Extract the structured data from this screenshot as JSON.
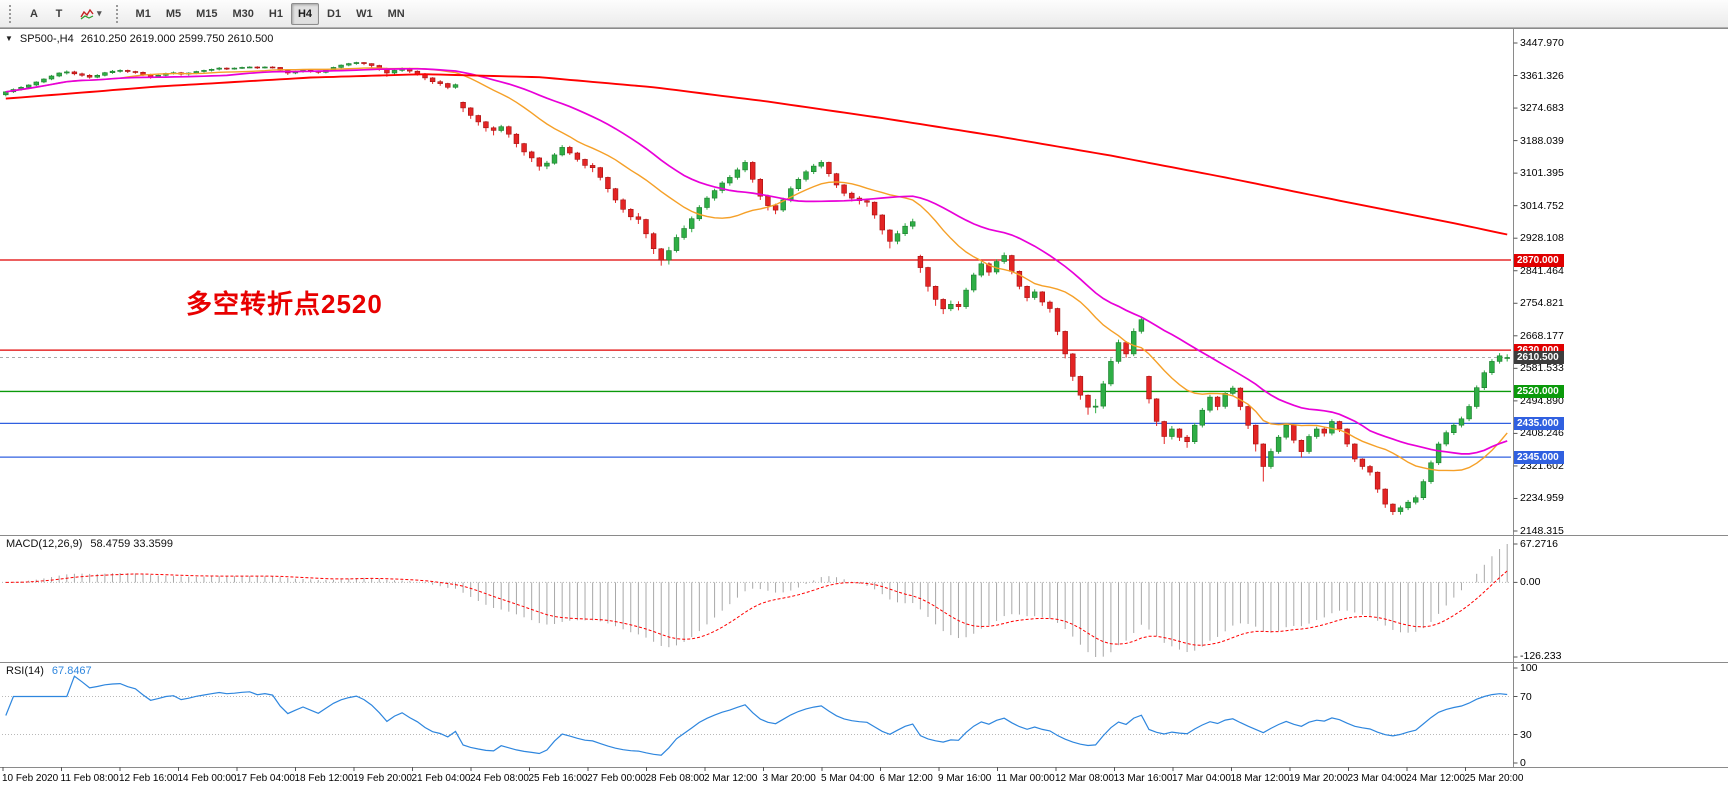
{
  "toolbar": {
    "tool_buttons": [
      {
        "id": "cursor-a",
        "label": "A"
      },
      {
        "id": "text-t",
        "label": "T"
      }
    ],
    "dropdown_caret": "▾",
    "timeframes": [
      {
        "label": "M1",
        "active": false
      },
      {
        "label": "M5",
        "active": false
      },
      {
        "label": "M15",
        "active": false
      },
      {
        "label": "M30",
        "active": false
      },
      {
        "label": "H1",
        "active": false
      },
      {
        "label": "H4",
        "active": true
      },
      {
        "label": "D1",
        "active": false
      },
      {
        "label": "W1",
        "active": false
      },
      {
        "label": "MN",
        "active": false
      }
    ]
  },
  "chart": {
    "menu_arrow": "▼",
    "symbol_label": "SP500-,H4",
    "ohlc_text": "2610.250 2619.000 2599.750 2610.500",
    "annotation": "多空转折点2520",
    "price_axis_labels": [
      "3447.970",
      "3361.326",
      "3274.683",
      "3188.039",
      "3101.395",
      "3014.752",
      "2928.108",
      "2841.464",
      "2754.821",
      "2668.177",
      "2581.533",
      "2494.890",
      "2408.246",
      "2321.602",
      "2234.959",
      "2148.315"
    ],
    "levels": [
      {
        "label": "2870.000",
        "price": 2870.0,
        "color": "#e00000"
      },
      {
        "label": "2630.000",
        "price": 2630.0,
        "color": "#e00000"
      },
      {
        "label": "2520.000",
        "price": 2520.0,
        "color": "#0a9a0a"
      },
      {
        "label": "2435.000",
        "price": 2435.0,
        "color": "#3060e0"
      },
      {
        "label": "2345.000",
        "price": 2345.0,
        "color": "#3060e0"
      }
    ],
    "current_price": {
      "label": "2610.500",
      "price": 2610.5,
      "badge_color": "#3d3d3d"
    },
    "time_axis_labels": [
      "10 Feb 2020",
      "11 Feb 08:00",
      "12 Feb 16:00",
      "14 Feb 00:00",
      "17 Feb 04:00",
      "18 Feb 12:00",
      "19 Feb 20:00",
      "21 Feb 04:00",
      "24 Feb 08:00",
      "25 Feb 16:00",
      "27 Feb 00:00",
      "28 Feb 08:00",
      "2 Mar 12:00",
      "3 Mar 20:00",
      "5 Mar 04:00",
      "6 Mar 12:00",
      "9 Mar 16:00",
      "11 Mar 00:00",
      "12 Mar 08:00",
      "13 Mar 16:00",
      "17 Mar 04:00",
      "18 Mar 12:00",
      "19 Mar 20:00",
      "23 Mar 04:00",
      "24 Mar 12:00",
      "25 Mar 20:00"
    ]
  },
  "macd_panel": {
    "label": "MACD(12,26,9)",
    "values": "58.4759 33.3599",
    "axis_labels": [
      "67.2716",
      "0.00",
      "-126.233"
    ]
  },
  "rsi_panel": {
    "label": "RSI(14)",
    "value": "67.8467",
    "axis_labels": [
      "100",
      "70",
      "30",
      "0"
    ],
    "levels": [
      70,
      30
    ]
  },
  "chart_data": {
    "type": "candlestick",
    "symbol": "SP500-",
    "timeframe": "H4",
    "price_range": [
      2148.315,
      3447.97
    ],
    "indicators": {
      "macd": [
        12,
        26,
        9
      ],
      "rsi": 14
    },
    "moving_averages": {
      "orange_sma_bars": 16,
      "magenta_sma_bars": 30,
      "red_ma_points": [
        [
          0,
          3300
        ],
        [
          20,
          3332
        ],
        [
          40,
          3356
        ],
        [
          55,
          3365
        ],
        [
          70,
          3357
        ],
        [
          85,
          3330
        ],
        [
          100,
          3292
        ],
        [
          115,
          3248
        ],
        [
          130,
          3200
        ],
        [
          145,
          3148
        ],
        [
          160,
          3090
        ],
        [
          175,
          3028
        ],
        [
          190,
          2968
        ],
        [
          197,
          2938
        ]
      ]
    },
    "colors": {
      "up": "#2eae45",
      "up_stroke": "#1d7a2e",
      "down": "#e32424",
      "down_stroke": "#a31212",
      "ma_red": "#ff0000",
      "ma_magenta": "#e800d8",
      "ma_orange": "#f5a028",
      "macd_hist": "#a8a8a8",
      "macd_signal": "#ff0000",
      "rsi": "#2e86de",
      "separator": "#8a8a8a",
      "tick": "#555555",
      "dotted_level": "#b8b8b8",
      "current_line": "#aaaaaa"
    },
    "bars": [
      [
        3310,
        3320,
        3306,
        3318
      ],
      [
        3318,
        3327,
        3315,
        3324
      ],
      [
        3324,
        3333,
        3321,
        3330
      ],
      [
        3330,
        3338,
        3326,
        3336
      ],
      [
        3336,
        3346,
        3333,
        3344
      ],
      [
        3344,
        3354,
        3341,
        3352
      ],
      [
        3352,
        3363,
        3349,
        3360
      ],
      [
        3360,
        3370,
        3357,
        3368
      ],
      [
        3368,
        3375,
        3364,
        3371
      ],
      [
        3371,
        3374,
        3362,
        3366
      ],
      [
        3366,
        3369,
        3358,
        3362
      ],
      [
        3362,
        3365,
        3353,
        3357
      ],
      [
        3357,
        3365,
        3354,
        3362
      ],
      [
        3362,
        3371,
        3359,
        3369
      ],
      [
        3369,
        3376,
        3366,
        3373
      ],
      [
        3373,
        3378,
        3369,
        3375
      ],
      [
        3375,
        3377,
        3368,
        3372
      ],
      [
        3372,
        3374,
        3366,
        3370
      ],
      [
        3370,
        3372,
        3360,
        3364
      ],
      [
        3364,
        3366,
        3353,
        3358
      ],
      [
        3358,
        3364,
        3355,
        3362
      ],
      [
        3362,
        3369,
        3359,
        3367
      ],
      [
        3367,
        3372,
        3364,
        3369
      ],
      [
        3369,
        3371,
        3361,
        3365
      ],
      [
        3365,
        3370,
        3361,
        3368
      ],
      [
        3368,
        3374,
        3365,
        3372
      ],
      [
        3372,
        3377,
        3369,
        3375
      ],
      [
        3375,
        3380,
        3372,
        3378
      ],
      [
        3378,
        3384,
        3375,
        3381
      ],
      [
        3381,
        3383,
        3376,
        3380
      ],
      [
        3380,
        3383,
        3377,
        3381
      ],
      [
        3381,
        3385,
        3379,
        3383
      ],
      [
        3383,
        3386,
        3381,
        3384
      ],
      [
        3384,
        3386,
        3379,
        3382
      ],
      [
        3382,
        3386,
        3380,
        3384
      ],
      [
        3384,
        3386,
        3380,
        3383
      ],
      [
        3383,
        3384,
        3371,
        3375
      ],
      [
        3375,
        3377,
        3363,
        3368
      ],
      [
        3368,
        3374,
        3365,
        3372
      ],
      [
        3372,
        3378,
        3369,
        3376
      ],
      [
        3376,
        3378,
        3369,
        3373
      ],
      [
        3373,
        3375,
        3366,
        3370
      ],
      [
        3370,
        3378,
        3367,
        3376
      ],
      [
        3376,
        3385,
        3373,
        3383
      ],
      [
        3383,
        3391,
        3380,
        3389
      ],
      [
        3389,
        3395,
        3386,
        3393
      ],
      [
        3393,
        3398,
        3390,
        3396
      ],
      [
        3396,
        3397,
        3389,
        3393
      ],
      [
        3393,
        3394,
        3383,
        3388
      ],
      [
        3388,
        3390,
        3374,
        3380
      ],
      [
        3380,
        3382,
        3358,
        3368
      ],
      [
        3368,
        3377,
        3364,
        3375
      ],
      [
        3375,
        3383,
        3371,
        3380
      ],
      [
        3380,
        3382,
        3368,
        3373
      ],
      [
        3373,
        3375,
        3361,
        3366
      ],
      [
        3366,
        3368,
        3349,
        3355
      ],
      [
        3355,
        3357,
        3339,
        3345
      ],
      [
        3345,
        3349,
        3334,
        3340
      ],
      [
        3340,
        3342,
        3325,
        3330
      ],
      [
        3330,
        3340,
        3326,
        3337
      ],
      [
        3290,
        3292,
        3264,
        3275
      ],
      [
        3275,
        3277,
        3246,
        3255
      ],
      [
        3255,
        3257,
        3228,
        3238
      ],
      [
        3238,
        3240,
        3212,
        3222
      ],
      [
        3222,
        3226,
        3202,
        3215
      ],
      [
        3215,
        3230,
        3210,
        3225
      ],
      [
        3225,
        3228,
        3196,
        3205
      ],
      [
        3205,
        3208,
        3170,
        3180
      ],
      [
        3180,
        3182,
        3148,
        3158
      ],
      [
        3158,
        3161,
        3131,
        3142
      ],
      [
        3142,
        3144,
        3108,
        3120
      ],
      [
        3120,
        3134,
        3112,
        3128
      ],
      [
        3128,
        3155,
        3124,
        3150
      ],
      [
        3150,
        3176,
        3146,
        3170
      ],
      [
        3170,
        3174,
        3150,
        3155
      ],
      [
        3155,
        3158,
        3132,
        3138
      ],
      [
        3138,
        3140,
        3114,
        3122
      ],
      [
        3122,
        3128,
        3104,
        3116
      ],
      [
        3116,
        3118,
        3082,
        3090
      ],
      [
        3090,
        3092,
        3050,
        3060
      ],
      [
        3060,
        3062,
        3022,
        3030
      ],
      [
        3030,
        3034,
        2996,
        3005
      ],
      [
        3005,
        3008,
        2976,
        2985
      ],
      [
        2985,
        2995,
        2966,
        2978
      ],
      [
        2978,
        2980,
        2928,
        2940
      ],
      [
        2940,
        2944,
        2886,
        2900
      ],
      [
        2900,
        2902,
        2855,
        2870
      ],
      [
        2870,
        2905,
        2858,
        2895
      ],
      [
        2895,
        2938,
        2890,
        2930
      ],
      [
        2930,
        2962,
        2924,
        2954
      ],
      [
        2954,
        2986,
        2944,
        2980
      ],
      [
        2980,
        3016,
        2974,
        3010
      ],
      [
        3010,
        3040,
        3004,
        3035
      ],
      [
        3035,
        3060,
        3028,
        3055
      ],
      [
        3055,
        3080,
        3048,
        3075
      ],
      [
        3075,
        3096,
        3068,
        3090
      ],
      [
        3090,
        3116,
        3084,
        3110
      ],
      [
        3110,
        3136,
        3104,
        3130
      ],
      [
        3130,
        3133,
        3076,
        3085
      ],
      [
        3085,
        3088,
        3030,
        3040
      ],
      [
        3040,
        3044,
        3002,
        3015
      ],
      [
        3015,
        3020,
        2992,
        3003
      ],
      [
        3003,
        3036,
        2998,
        3030
      ],
      [
        3030,
        3066,
        3024,
        3060
      ],
      [
        3060,
        3090,
        3054,
        3085
      ],
      [
        3085,
        3110,
        3079,
        3105
      ],
      [
        3105,
        3126,
        3099,
        3120
      ],
      [
        3120,
        3136,
        3114,
        3130
      ],
      [
        3130,
        3132,
        3092,
        3100
      ],
      [
        3100,
        3102,
        3062,
        3070
      ],
      [
        3070,
        3072,
        3040,
        3048
      ],
      [
        3048,
        3052,
        3026,
        3035
      ],
      [
        3035,
        3040,
        3018,
        3028
      ],
      [
        3028,
        3034,
        3012,
        3024
      ],
      [
        3024,
        3026,
        2980,
        2990
      ],
      [
        2990,
        2992,
        2938,
        2950
      ],
      [
        2950,
        2952,
        2901,
        2920
      ],
      [
        2920,
        2948,
        2912,
        2940
      ],
      [
        2940,
        2968,
        2934,
        2960
      ],
      [
        2960,
        2980,
        2952,
        2972
      ],
      [
        2880,
        2884,
        2836,
        2850
      ],
      [
        2850,
        2852,
        2786,
        2800
      ],
      [
        2800,
        2802,
        2748,
        2765
      ],
      [
        2765,
        2768,
        2726,
        2740
      ],
      [
        2740,
        2762,
        2734,
        2752
      ],
      [
        2752,
        2760,
        2736,
        2746
      ],
      [
        2746,
        2796,
        2740,
        2790
      ],
      [
        2790,
        2836,
        2784,
        2830
      ],
      [
        2830,
        2866,
        2824,
        2860
      ],
      [
        2860,
        2864,
        2828,
        2838
      ],
      [
        2838,
        2872,
        2832,
        2866
      ],
      [
        2866,
        2890,
        2860,
        2882
      ],
      [
        2882,
        2884,
        2832,
        2840
      ],
      [
        2840,
        2842,
        2792,
        2800
      ],
      [
        2800,
        2802,
        2760,
        2770
      ],
      [
        2770,
        2792,
        2764,
        2785
      ],
      [
        2785,
        2787,
        2748,
        2758
      ],
      [
        2758,
        2762,
        2730,
        2741
      ],
      [
        2741,
        2743,
        2670,
        2680
      ],
      [
        2680,
        2682,
        2608,
        2620
      ],
      [
        2620,
        2622,
        2548,
        2560
      ],
      [
        2560,
        2562,
        2498,
        2510
      ],
      [
        2510,
        2512,
        2458,
        2478
      ],
      [
        2478,
        2500,
        2462,
        2481
      ],
      [
        2481,
        2548,
        2474,
        2540
      ],
      [
        2540,
        2608,
        2534,
        2600
      ],
      [
        2600,
        2658,
        2594,
        2650
      ],
      [
        2650,
        2654,
        2610,
        2620
      ],
      [
        2620,
        2688,
        2614,
        2680
      ],
      [
        2680,
        2720,
        2674,
        2711
      ],
      [
        2560,
        2562,
        2488,
        2500
      ],
      [
        2500,
        2502,
        2428,
        2440
      ],
      [
        2440,
        2442,
        2380,
        2400
      ],
      [
        2400,
        2428,
        2392,
        2420
      ],
      [
        2420,
        2422,
        2388,
        2398
      ],
      [
        2398,
        2404,
        2370,
        2386
      ],
      [
        2386,
        2436,
        2380,
        2430
      ],
      [
        2430,
        2476,
        2424,
        2470
      ],
      [
        2470,
        2511,
        2464,
        2505
      ],
      [
        2505,
        2508,
        2470,
        2480
      ],
      [
        2480,
        2521,
        2474,
        2515
      ],
      [
        2515,
        2535,
        2509,
        2529
      ],
      [
        2529,
        2531,
        2470,
        2480
      ],
      [
        2480,
        2482,
        2420,
        2430
      ],
      [
        2430,
        2432,
        2360,
        2380
      ],
      [
        2380,
        2382,
        2280,
        2320
      ],
      [
        2320,
        2368,
        2314,
        2360
      ],
      [
        2360,
        2404,
        2354,
        2398
      ],
      [
        2398,
        2436,
        2392,
        2430
      ],
      [
        2430,
        2432,
        2382,
        2390
      ],
      [
        2390,
        2392,
        2344,
        2360
      ],
      [
        2360,
        2406,
        2354,
        2400
      ],
      [
        2400,
        2426,
        2394,
        2420
      ],
      [
        2420,
        2424,
        2400,
        2409
      ],
      [
        2409,
        2446,
        2403,
        2440
      ],
      [
        2440,
        2442,
        2412,
        2420
      ],
      [
        2420,
        2422,
        2372,
        2380
      ],
      [
        2380,
        2382,
        2332,
        2340
      ],
      [
        2340,
        2342,
        2312,
        2320
      ],
      [
        2320,
        2324,
        2296,
        2305
      ],
      [
        2305,
        2307,
        2250,
        2260
      ],
      [
        2260,
        2262,
        2210,
        2220
      ],
      [
        2220,
        2222,
        2191,
        2200
      ],
      [
        2200,
        2216,
        2192,
        2210
      ],
      [
        2210,
        2231,
        2204,
        2225
      ],
      [
        2225,
        2243,
        2219,
        2237
      ],
      [
        2237,
        2286,
        2231,
        2280
      ],
      [
        2280,
        2336,
        2274,
        2330
      ],
      [
        2330,
        2386,
        2324,
        2380
      ],
      [
        2380,
        2416,
        2374,
        2410
      ],
      [
        2410,
        2436,
        2404,
        2430
      ],
      [
        2430,
        2453,
        2424,
        2447
      ],
      [
        2447,
        2486,
        2441,
        2480
      ],
      [
        2480,
        2536,
        2474,
        2530
      ],
      [
        2530,
        2576,
        2524,
        2570
      ],
      [
        2570,
        2606,
        2564,
        2600
      ],
      [
        2600,
        2622,
        2594,
        2615
      ],
      [
        2610.25,
        2619,
        2599.75,
        2610.5
      ]
    ]
  }
}
